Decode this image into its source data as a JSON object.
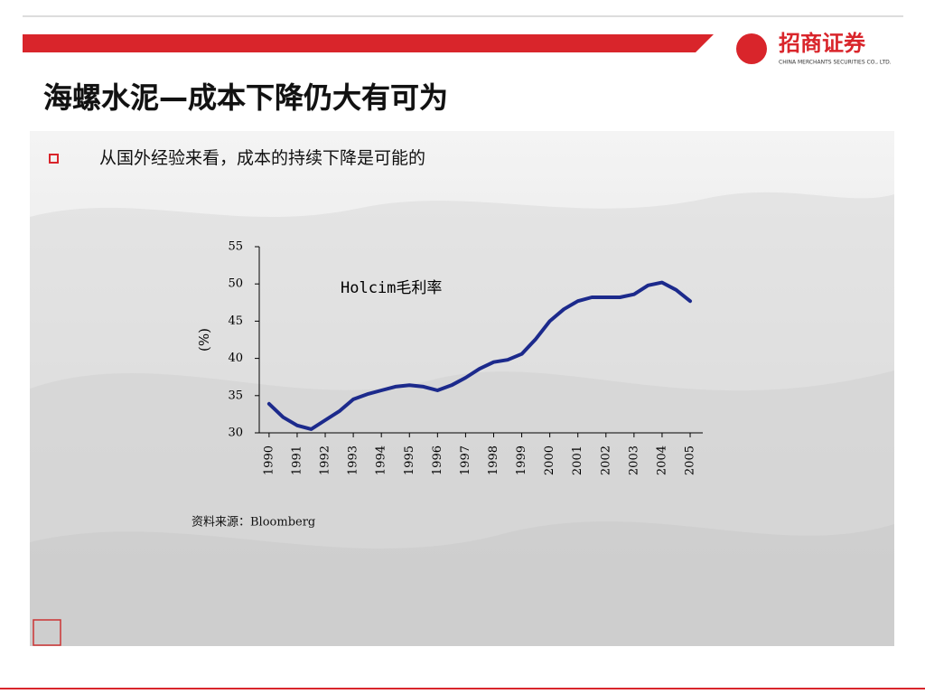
{
  "header": {
    "title": "海螺水泥—成本下降仍大有可为",
    "logo": "招商证券",
    "logo_sub": "CHINA MERCHANTS SECURITIES CO., LTD.",
    "bullet": "从国外经验来看，成本的持续下降是可能的",
    "source": "资料来源：Bloomberg"
  },
  "chart_data": {
    "type": "line",
    "x": [
      1990,
      1990.5,
      1991,
      1991.5,
      1992,
      1992.5,
      1993,
      1993.5,
      1994,
      1994.5,
      1995,
      1995.5,
      1996,
      1996.5,
      1997,
      1997.5,
      1998,
      1998.5,
      1999,
      1999.5,
      2000,
      2000.5,
      2001,
      2001.5,
      2002,
      2002.5,
      2003,
      2003.5,
      2004,
      2004.5,
      2005
    ],
    "series": [
      {
        "name": "Holcim毛利率",
        "color": "#1c2a8c",
        "values": [
          33.9,
          32.1,
          31.0,
          30.5,
          31.7,
          32.9,
          34.5,
          35.2,
          35.7,
          36.2,
          36.4,
          36.2,
          35.7,
          36.4,
          37.4,
          38.6,
          39.5,
          39.8,
          40.6,
          42.6,
          45.0,
          46.6,
          47.7,
          48.2,
          48.2,
          48.2,
          48.6,
          49.8,
          50.2,
          49.2,
          47.7
        ]
      }
    ],
    "ylabel": "(%)",
    "xlim": [
      1989.65,
      2005.45
    ],
    "xticks": [
      1990,
      1991,
      1992,
      1993,
      1994,
      1995,
      1996,
      1997,
      1998,
      1999,
      2000,
      2001,
      2002,
      2003,
      2004,
      2005
    ],
    "ylim": [
      30,
      55
    ],
    "yticks": [
      30,
      35,
      40,
      45,
      50,
      55
    ]
  }
}
